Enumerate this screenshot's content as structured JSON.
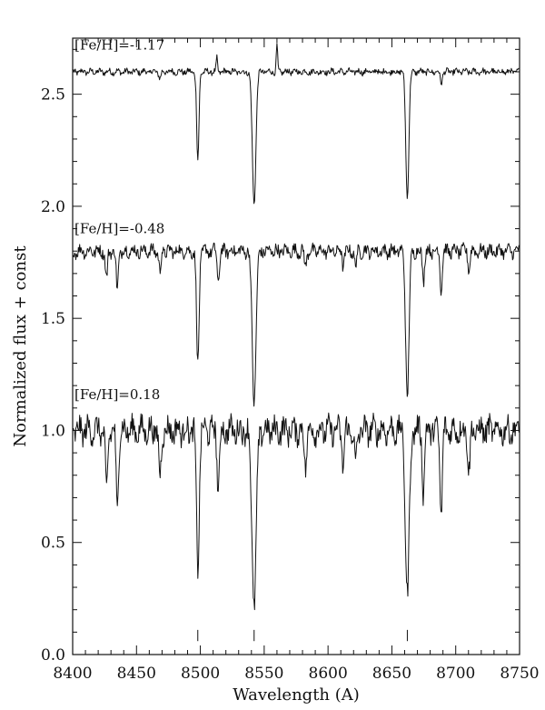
{
  "chart_data": {
    "type": "line",
    "title": "",
    "xlabel": "Wavelength (A)",
    "ylabel": "Normalized flux + const",
    "xlim": [
      8400,
      8750
    ],
    "ylim": [
      0.0,
      2.75
    ],
    "xticks": [
      8400,
      8450,
      8500,
      8550,
      8600,
      8650,
      8700,
      8750
    ],
    "xtick_labels": [
      "8400",
      "8450",
      "8500",
      "8550",
      "8600",
      "8650",
      "8700",
      "8750"
    ],
    "yticks": [
      0.0,
      0.5,
      1.0,
      1.5,
      2.0,
      2.5
    ],
    "ytick_labels": [
      "0.0",
      "0.5",
      "1.0",
      "1.5",
      "2.0",
      "2.5"
    ],
    "grid": false,
    "legend": "none",
    "series": [
      {
        "name": "[Fe/H]=-1.17",
        "offset": 2.6,
        "noise": 0.012,
        "lines": [
          {
            "center": 8498.0,
            "depth": 0.4,
            "width": 0.9
          },
          {
            "center": 8542.1,
            "depth": 0.59,
            "width": 1.4
          },
          {
            "center": 8662.1,
            "depth": 0.56,
            "width": 1.2
          },
          {
            "center": 8688.6,
            "depth": 0.05,
            "width": 0.8
          },
          {
            "center": 8468.4,
            "depth": 0.03,
            "width": 0.8
          }
        ],
        "spikes": [
          {
            "center": 8513.0,
            "height": 0.06
          },
          {
            "center": 8560.0,
            "height": 0.12
          }
        ]
      },
      {
        "name": "[Fe/H]=-0.48",
        "offset": 1.8,
        "noise": 0.025,
        "lines": [
          {
            "center": 8498.0,
            "depth": 0.51,
            "width": 1.0
          },
          {
            "center": 8542.1,
            "depth": 0.67,
            "width": 1.5
          },
          {
            "center": 8662.1,
            "depth": 0.65,
            "width": 1.3
          },
          {
            "center": 8426.5,
            "depth": 0.13,
            "width": 0.8
          },
          {
            "center": 8434.9,
            "depth": 0.18,
            "width": 0.8
          },
          {
            "center": 8468.4,
            "depth": 0.1,
            "width": 0.8
          },
          {
            "center": 8514.1,
            "depth": 0.14,
            "width": 0.8
          },
          {
            "center": 8582.3,
            "depth": 0.07,
            "width": 0.8
          },
          {
            "center": 8611.8,
            "depth": 0.06,
            "width": 0.8
          },
          {
            "center": 8621.6,
            "depth": 0.07,
            "width": 0.8
          },
          {
            "center": 8674.7,
            "depth": 0.13,
            "width": 0.8
          },
          {
            "center": 8688.6,
            "depth": 0.17,
            "width": 0.8
          },
          {
            "center": 8710.4,
            "depth": 0.08,
            "width": 0.8
          }
        ],
        "spikes": []
      },
      {
        "name": "[Fe/H]=0.18",
        "offset": 1.0,
        "noise": 0.05,
        "lines": [
          {
            "center": 8498.0,
            "depth": 0.61,
            "width": 1.1
          },
          {
            "center": 8542.1,
            "depth": 0.78,
            "width": 1.7
          },
          {
            "center": 8662.1,
            "depth": 0.74,
            "width": 1.5
          },
          {
            "center": 8426.5,
            "depth": 0.28,
            "width": 0.9
          },
          {
            "center": 8434.9,
            "depth": 0.36,
            "width": 0.9
          },
          {
            "center": 8468.4,
            "depth": 0.22,
            "width": 0.9
          },
          {
            "center": 8514.1,
            "depth": 0.26,
            "width": 0.9
          },
          {
            "center": 8582.3,
            "depth": 0.16,
            "width": 0.9
          },
          {
            "center": 8611.8,
            "depth": 0.15,
            "width": 0.9
          },
          {
            "center": 8621.6,
            "depth": 0.17,
            "width": 0.9
          },
          {
            "center": 8674.7,
            "depth": 0.27,
            "width": 0.9
          },
          {
            "center": 8688.6,
            "depth": 0.37,
            "width": 0.9
          },
          {
            "center": 8710.4,
            "depth": 0.18,
            "width": 0.9
          }
        ],
        "spikes": []
      }
    ],
    "annotations": [
      {
        "text": "[Fe/H]=-1.17",
        "x": 8400,
        "y": 2.7
      },
      {
        "text": "[Fe/H]=-0.48",
        "x": 8400,
        "y": 1.88
      },
      {
        "text": "[Fe/H]=0.18",
        "x": 8400,
        "y": 1.14
      }
    ],
    "markers": [
      {
        "x": 8498.0,
        "y_from": 0.06,
        "y_to": 0.11
      },
      {
        "x": 8542.1,
        "y_from": 0.06,
        "y_to": 0.11
      },
      {
        "x": 8662.1,
        "y_from": 0.06,
        "y_to": 0.11
      }
    ]
  }
}
